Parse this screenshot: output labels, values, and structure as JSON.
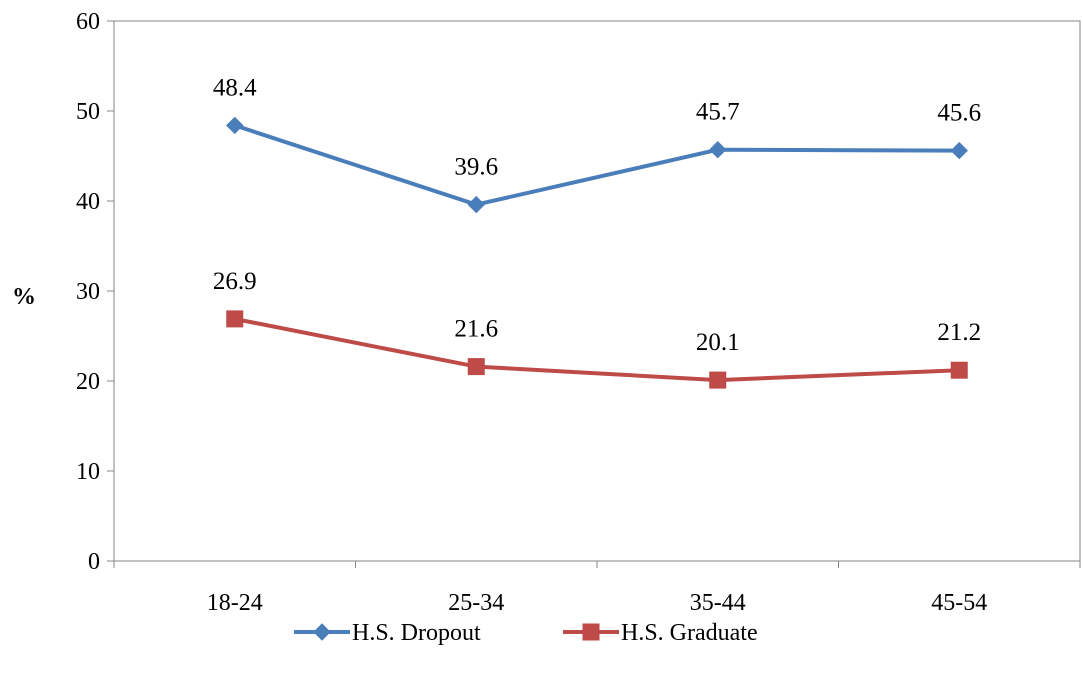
{
  "chart_data": {
    "type": "line",
    "title": "",
    "xlabel": "",
    "ylabel": "%",
    "categories": [
      "18-24",
      "25-34",
      "35-44",
      "45-54"
    ],
    "ylim": [
      0,
      60
    ],
    "yticks": [
      0,
      10,
      20,
      30,
      40,
      50,
      60
    ],
    "grid": false,
    "legend_position": "bottom",
    "series": [
      {
        "name": "H.S. Dropout",
        "values": [
          48.4,
          39.6,
          45.7,
          45.6
        ],
        "labels": [
          "48.4",
          "39.6",
          "45.7",
          "45.6"
        ],
        "color": "#4a7ebb",
        "marker": "diamond"
      },
      {
        "name": "H.S. Graduate",
        "values": [
          26.9,
          21.6,
          20.1,
          21.2
        ],
        "labels": [
          "26.9",
          "21.6",
          "20.1",
          "21.2"
        ],
        "color": "#be4b48",
        "marker": "square"
      }
    ]
  }
}
